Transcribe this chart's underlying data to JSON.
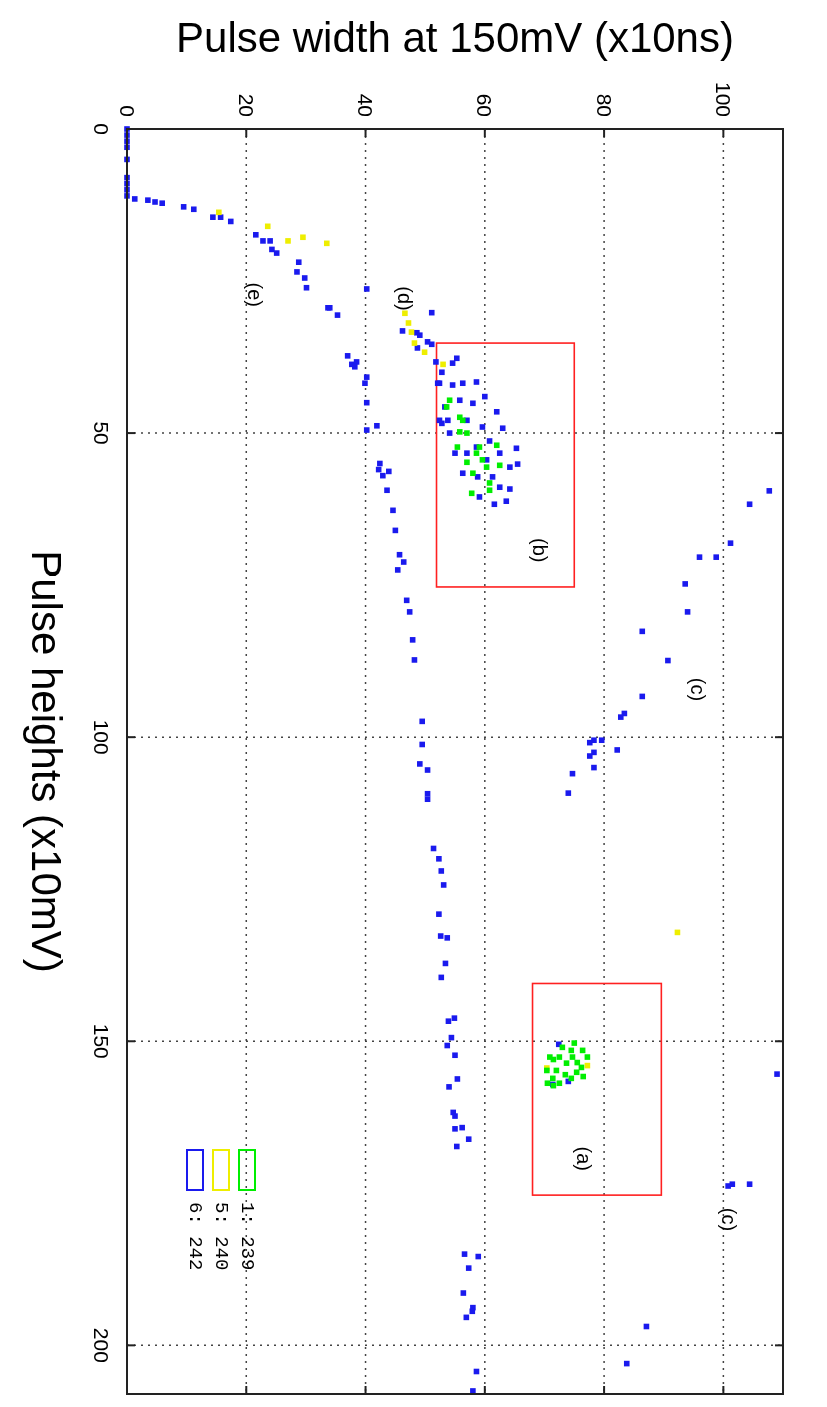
{
  "chart_data": {
    "type": "scatter",
    "xlabel": "Pulse width at 150mV (x10ns)",
    "ylabel": "Pulse heights (x10mV)",
    "xlim": [
      0,
      110
    ],
    "ylim": [
      208,
      0
    ],
    "xticks": [
      0,
      20,
      40,
      60,
      80,
      100
    ],
    "yticks": [
      0,
      50,
      100,
      150,
      200
    ],
    "grid": true,
    "legend": "bottom left",
    "marker": "square",
    "annotations": [
      "(a)",
      "(b)",
      "(c)",
      "(c)",
      "(d)",
      "(e)"
    ],
    "series": [
      {
        "name": "1: 239",
        "color": "#00ee00",
        "values": [
          44.6,
          47.4,
          50,
          52.3,
          54.4,
          56.6,
          58.2,
          52,
          55.3,
          59.9,
          52.3,
          54.8,
          49.8,
          55.6,
          53.3,
          45.7,
          47.9,
          59.4,
          150.3,
          151,
          151.5,
          152.6,
          152.6,
          154.8,
          156.9,
          156.9,
          156.1,
          154.3,
          153.6,
          154.8,
          152.6,
          152.6,
          156.1,
          155.1,
          151.5,
          153.5,
          155.5,
          153,
          157.3,
          155.8
        ],
        "x": [
          54.1,
          55.8,
          57,
          59.1,
          59.6,
          58,
          60.8,
          62,
          62.5,
          57.8,
          55.4,
          57,
          55.8,
          60.3,
          58.6,
          53.6,
          56.3,
          60.8,
          75,
          73,
          76.4,
          77.2,
          70.9,
          70.4,
          70.5,
          72.5,
          74.5,
          76.2,
          73.7,
          72,
          74.7,
          72.5,
          71.4,
          75.4,
          74.5,
          75.5,
          73.5,
          71.5,
          71.5,
          76.5
        ]
      },
      {
        "name": "5: 240",
        "color": "#eeee00",
        "values": [
          13.7,
          16,
          18.4,
          17.8,
          18.8,
          30.3,
          31.9,
          33.4,
          35.2,
          36.7,
          38.7,
          132.1,
          154.4,
          154
        ],
        "x": [
          15.4,
          23.6,
          27,
          29.5,
          33.5,
          46.6,
          47.2,
          47.7,
          48.2,
          49.9,
          53,
          92.3,
          70.4,
          77.2
        ]
      },
      {
        "name": "6: 242",
        "color": "#1a1aee",
        "values": [
          0,
          1,
          2,
          3,
          5,
          8,
          9,
          10,
          11,
          11.5,
          11.7,
          12,
          12.2,
          12.8,
          13.2,
          14.5,
          14.5,
          15.2,
          17.4,
          18.4,
          18.4,
          19.8,
          20.4,
          21.9,
          23.5,
          24.5,
          26.1,
          29.4,
          29.4,
          30.6,
          37.3,
          38.7,
          38.3,
          39.1,
          40.8,
          41.8,
          45,
          49.5,
          48.8,
          55,
          56,
          56.3,
          57,
          59.4,
          62.7,
          66,
          70,
          71.2,
          72.5,
          77.5,
          79.4,
          84,
          87.3,
          97.4,
          101.2,
          104.4,
          105.4,
          109.3,
          110.2,
          118.3,
          120,
          122,
          124.3,
          129.1,
          132.7,
          133,
          137.2,
          139.5,
          146.2,
          146.7,
          149.4,
          150.7,
          152.3,
          156.2,
          157.5,
          161.7,
          162.3,
          164.2,
          164.4,
          166.1,
          167.3,
          185,
          185.4,
          187.3,
          191.4,
          193.8,
          194.4,
          195.4,
          204.3,
          207.5,
          26.3,
          30.2,
          33.2,
          33.5,
          33.9,
          35,
          35.4,
          36,
          37.7,
          38.3,
          38.5,
          40,
          41.8,
          47.9,
          48.4,
          41.6,
          41.8,
          41.8,
          42.1,
          44,
          44.6,
          45.1,
          45.7,
          46.5,
          47.9,
          47.9,
          49,
          49.2,
          50,
          51.3,
          52.3,
          52.5,
          53.3,
          53.3,
          53.3,
          54.4,
          55.1,
          55.6,
          56.6,
          57.2,
          57.2,
          58.9,
          59.2,
          60.5,
          61.2,
          61.7,
          59.5,
          61.7,
          68.1,
          70.4,
          70.4,
          74.8,
          79.4,
          82.6,
          87.4,
          93.3,
          96.1,
          96.7,
          100.5,
          100.5,
          100.9,
          102.1,
          102.5,
          103.1,
          105,
          106,
          109.2,
          155.4,
          173.5,
          173.8,
          173.5,
          196.9,
          203,
          150.5,
          157.1,
          156.6
        ],
        "x": [
          0,
          0,
          0,
          0,
          0,
          0,
          0,
          0,
          0,
          1.3,
          3.5,
          4.7,
          5.9,
          9.5,
          11.2,
          14.4,
          15.7,
          17.4,
          21.6,
          22.8,
          24,
          24.3,
          25.1,
          28.8,
          28.5,
          29.8,
          30.1,
          33.7,
          34,
          35.3,
          37,
          37.7,
          38.5,
          38.2,
          40.2,
          39.9,
          40.2,
          40.2,
          41.9,
          42.4,
          42.2,
          43.9,
          42.9,
          43.6,
          44.6,
          45,
          45.7,
          46.4,
          45.4,
          46.9,
          47.4,
          47.9,
          48.2,
          49.5,
          49.5,
          49.1,
          50.4,
          50.4,
          50.4,
          51.4,
          52.3,
          52.7,
          53.1,
          52.3,
          52.6,
          53.7,
          53.4,
          52.7,
          54.9,
          53.9,
          54.4,
          53.7,
          55,
          55.4,
          54,
          54.7,
          55,
          56.2,
          55,
          57.3,
          55.3,
          56.6,
          58.9,
          57.3,
          56.4,
          58,
          57.9,
          56.9,
          58.6,
          58,
          40.2,
          51.1,
          46.2,
          48.6,
          49.1,
          50.4,
          51.1,
          48.7,
          55.3,
          51.8,
          54.6,
          52.8,
          52.1,
          53.8,
          52.8,
          58.6,
          52.4,
          56.3,
          54.6,
          60,
          55.8,
          58,
          53.3,
          62,
          52.4,
          57,
          59.6,
          63,
          54.1,
          60.8,
          58.6,
          65.3,
          55,
          57,
          62.5,
          60.3,
          65.5,
          64.2,
          56.3,
          58.8,
          61.3,
          62.5,
          64.2,
          59.1,
          63.6,
          61.6,
          107.7,
          104.4,
          101.2,
          98.8,
          96,
          93.6,
          94,
          86.4,
          90.7,
          86.4,
          83.4,
          82.8,
          79.6,
          78.3,
          77.6,
          82.2,
          78.3,
          77.6,
          78.3,
          74.7,
          74,
          109,
          101.5,
          100.8,
          104.4,
          87.1,
          83.8,
          72.4,
          71.4,
          74
        ]
      }
    ]
  }
}
